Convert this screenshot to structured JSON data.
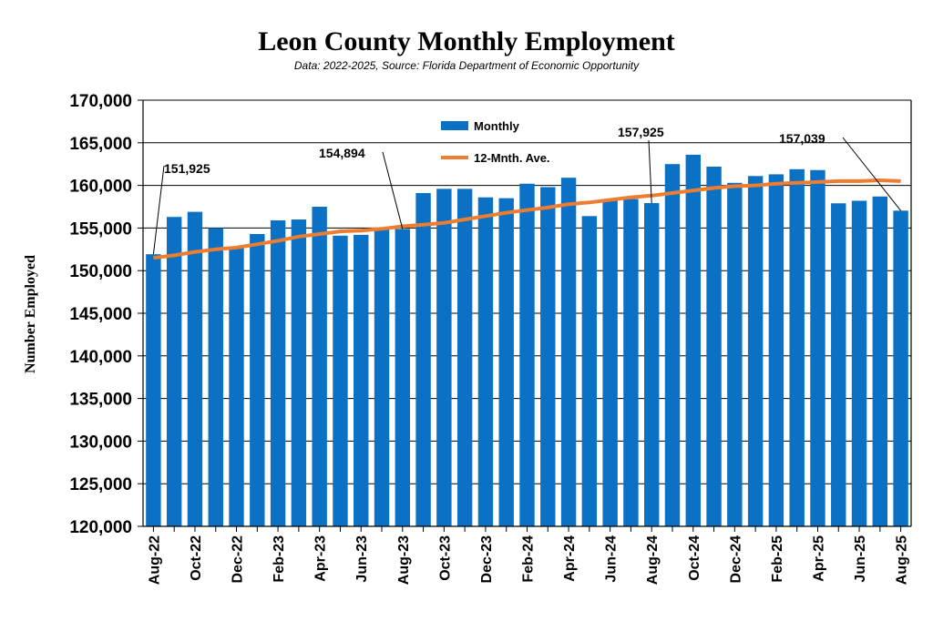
{
  "chart_data": {
    "type": "bar",
    "title": "Leon County Monthly Employment",
    "subtitle": "Data: 2022-2025, Source: Florida Department of Economic Opportunity",
    "ylabel": "Number Employed",
    "xlabel": "",
    "ylim": [
      120000,
      170000
    ],
    "yticks": [
      120000,
      125000,
      130000,
      135000,
      140000,
      145000,
      150000,
      155000,
      160000,
      165000,
      170000
    ],
    "ytick_labels": [
      "120,000",
      "125,000",
      "130,000",
      "135,000",
      "140,000",
      "145,000",
      "150,000",
      "155,000",
      "160,000",
      "165,000",
      "170,000"
    ],
    "grid": "horizontal",
    "legend_position": "top-center",
    "categories": [
      "Aug-22",
      "Sep-22",
      "Oct-22",
      "Nov-22",
      "Dec-22",
      "Jan-23",
      "Feb-23",
      "Mar-23",
      "Apr-23",
      "May-23",
      "Jun-23",
      "Jul-23",
      "Aug-23",
      "Sep-23",
      "Oct-23",
      "Nov-23",
      "Dec-23",
      "Jan-24",
      "Feb-24",
      "Mar-24",
      "Apr-24",
      "May-24",
      "Jun-24",
      "Jul-24",
      "Aug-24",
      "Sep-24",
      "Oct-24",
      "Nov-24",
      "Dec-24",
      "Jan-25",
      "Feb-25",
      "Mar-25",
      "Apr-25",
      "May-25",
      "Jun-25",
      "Jul-25",
      "Aug-25"
    ],
    "x_tick_labels": [
      "Aug-22",
      "",
      "Oct-22",
      "",
      "Dec-22",
      "",
      "Feb-23",
      "",
      "Apr-23",
      "",
      "Jun-23",
      "",
      "Aug-23",
      "",
      "Oct-23",
      "",
      "Dec-23",
      "",
      "Feb-24",
      "",
      "Apr-24",
      "",
      "Jun-24",
      "",
      "Aug-24",
      "",
      "Oct-24",
      "",
      "Dec-24",
      "",
      "Feb-25",
      "",
      "Apr-25",
      "",
      "Jun-25",
      "",
      "Aug-25"
    ],
    "series": [
      {
        "name": "Monthly",
        "type": "bar",
        "color": "#0a71c5",
        "values": [
          151925,
          156300,
          156900,
          155000,
          152700,
          154300,
          155900,
          156000,
          157500,
          154100,
          154200,
          154800,
          154894,
          159100,
          159600,
          159600,
          158600,
          158500,
          160200,
          159800,
          160900,
          156400,
          158300,
          158400,
          157925,
          162500,
          163600,
          162200,
          160300,
          161100,
          161300,
          161900,
          161800,
          157900,
          158200,
          158700,
          157039
        ]
      },
      {
        "name": "12-Mnth. Ave.",
        "type": "line",
        "color": "#ed7d31",
        "values": [
          151500,
          151800,
          152200,
          152500,
          152700,
          153100,
          153500,
          154000,
          154300,
          154600,
          154700,
          154900,
          155200,
          155400,
          155600,
          156000,
          156400,
          156800,
          157100,
          157400,
          157800,
          158000,
          158300,
          158600,
          158800,
          159100,
          159400,
          159700,
          159900,
          160000,
          160200,
          160300,
          160400,
          160500,
          160500,
          160600,
          160500
        ]
      }
    ],
    "annotations": [
      {
        "text": "151,925",
        "category": "Aug-22",
        "value": 151925
      },
      {
        "text": "154,894",
        "category": "Aug-23",
        "value": 154894
      },
      {
        "text": "157,925",
        "category": "Aug-24",
        "value": 157925
      },
      {
        "text": "157,039",
        "category": "Aug-25",
        "value": 157039
      }
    ]
  }
}
